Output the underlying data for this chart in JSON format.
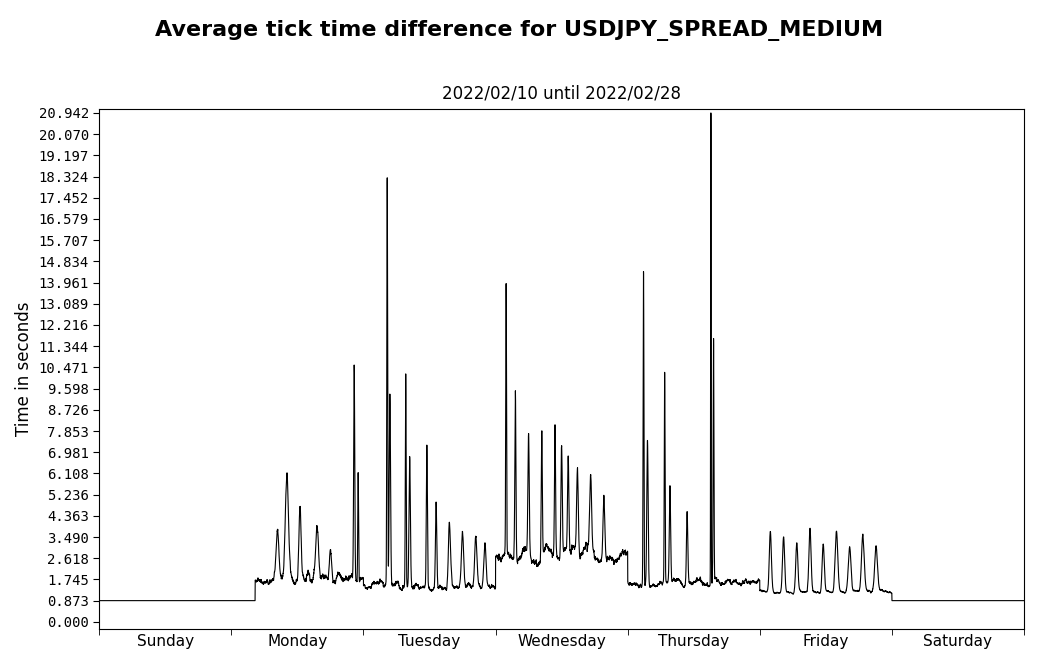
{
  "title": "Average tick time difference for USDJPY_SPREAD_MEDIUM",
  "subtitle": "2022/02/10 until 2022/02/28",
  "ylabel": "Time in seconds",
  "yticks": [
    0.0,
    0.873,
    1.745,
    2.618,
    3.49,
    4.363,
    5.236,
    6.108,
    6.981,
    7.853,
    8.726,
    9.598,
    10.471,
    11.344,
    12.216,
    13.089,
    13.961,
    14.834,
    15.707,
    16.579,
    17.452,
    18.324,
    19.197,
    20.07,
    20.942
  ],
  "xlabels": [
    "Sunday",
    "Monday",
    "Tuesday",
    "Wednesday",
    "Thursday",
    "Friday",
    "Saturday"
  ],
  "ymin": 0.0,
  "ymax": 20.942,
  "line_color": "#000000",
  "line_width": 0.8,
  "background_color": "#ffffff",
  "title_fontsize": 16,
  "subtitle_fontsize": 12,
  "ylabel_fontsize": 12,
  "ytick_fontsize": 10,
  "xtick_fontsize": 11
}
